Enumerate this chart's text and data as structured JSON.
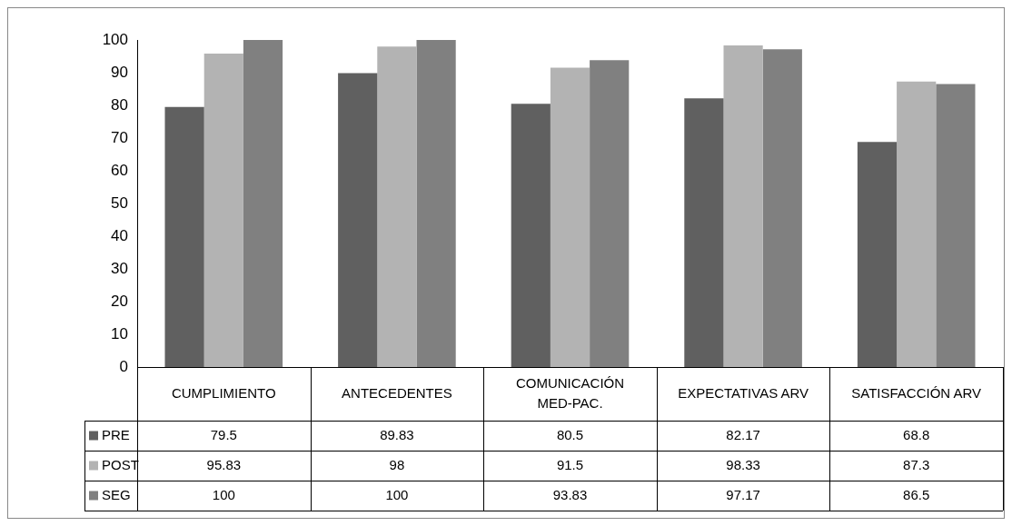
{
  "chart_data": {
    "type": "bar",
    "categories": [
      "CUMPLIMIENTO",
      "ANTECEDENTES",
      "COMUNICACIÓN MED-PAC.",
      "EXPECTATIVAS ARV",
      "SATISFACCIÓN ARV"
    ],
    "series": [
      {
        "name": "PRE",
        "color": "#606060",
        "values": [
          79.5,
          89.83,
          80.5,
          82.17,
          68.8
        ]
      },
      {
        "name": "POST",
        "color": "#b3b3b3",
        "values": [
          95.83,
          98,
          91.5,
          98.33,
          87.3
        ]
      },
      {
        "name": "SEG",
        "color": "#808080",
        "values": [
          100,
          100,
          93.83,
          97.17,
          86.5
        ]
      }
    ],
    "ylim": [
      0,
      100
    ],
    "yticks": [
      0,
      10,
      20,
      30,
      40,
      50,
      60,
      70,
      80,
      90,
      100
    ],
    "grid": false,
    "legend": "bottom left",
    "data_labels": true
  }
}
